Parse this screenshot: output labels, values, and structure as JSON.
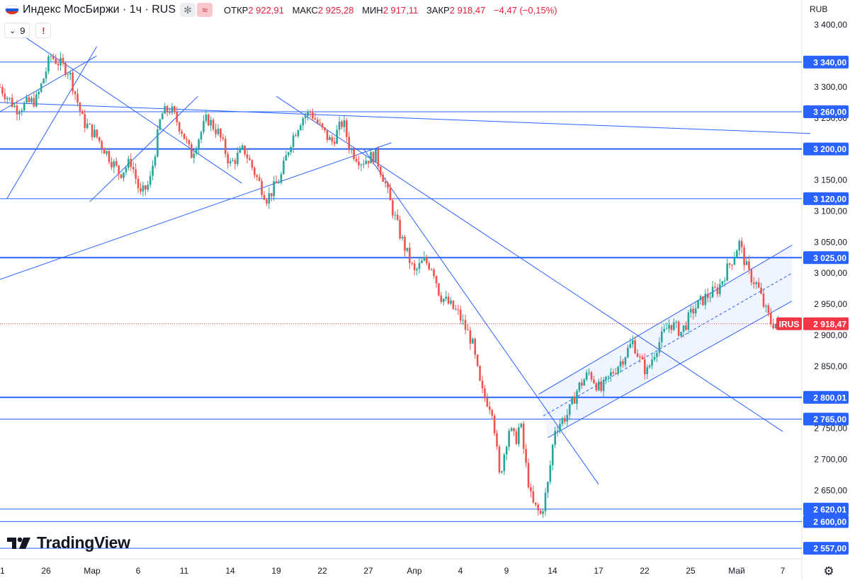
{
  "header": {
    "symbol": "Индекс МосБиржи · 1ч · RUS",
    "open_label": "ОТКР",
    "open_value": "2 922,91",
    "high_label": "МАКС",
    "high_value": "2 925,28",
    "low_label": "МИН",
    "low_value": "2 917,11",
    "close_label": "ЗАКР",
    "close_value": "2 918,47",
    "change": "−4,47 (−0,15%)",
    "indicator_count": "9",
    "warning_glyph": "!",
    "currency": "RUB"
  },
  "colors": {
    "up": "#26a69a",
    "down": "#ef5350",
    "line": "#2962ff",
    "label_bg": "#2962ff",
    "price_label_bg": "#f23645",
    "axis_text": "#131722"
  },
  "icons": [
    "flag-russia-icon",
    "snowflake-icon",
    "wave-icon",
    "chevron-down-icon",
    "warning-icon",
    "tradingview-logo-icon",
    "gear-icon"
  ],
  "chart_data": {
    "type": "candlestick",
    "title": "Индекс МосБиржи · 1ч · RUS",
    "y_ticks": [
      "3 400,00",
      "3 300,00",
      "3 250,00",
      "3 150,00",
      "3 100,00",
      "3 050,00",
      "3 000,00",
      "2 950,00",
      "2 900,00",
      "2 850,00",
      "2 750,00",
      "2 700,00",
      "2 650,00"
    ],
    "y_tick_values": [
      3400,
      3300,
      3250,
      3150,
      3100,
      3050,
      3000,
      2950,
      2900,
      2850,
      2750,
      2700,
      2650
    ],
    "ylim": [
      2540,
      3440
    ],
    "x_ticks": [
      "1",
      "26",
      "Мар",
      "6",
      "11",
      "14",
      "19",
      "22",
      "27",
      "Апр",
      "4",
      "9",
      "14",
      "17",
      "22",
      "25",
      "Май",
      "7"
    ],
    "level_labels": [
      "3 340,00",
      "3 260,00",
      "3 200,00",
      "3 120,00",
      "3 025,00",
      "2 800,01",
      "2 765,00",
      "2 620,01",
      "2 600,00",
      "2 557,00"
    ],
    "level_values": [
      3340,
      3260,
      3200,
      3120,
      3025,
      2800.01,
      2765,
      2620.01,
      2600,
      2557
    ],
    "current_price_symbol": "IRUS",
    "current_price_label": "2 918,47",
    "current_price": 2918.47,
    "price_path": [
      [
        0,
        3300
      ],
      [
        0.35,
        3265
      ],
      [
        0.8,
        3280
      ],
      [
        1.1,
        3350
      ],
      [
        1.5,
        3325
      ],
      [
        1.8,
        3245
      ],
      [
        2.1,
        3220
      ],
      [
        2.6,
        3160
      ],
      [
        2.85,
        3180
      ],
      [
        3.05,
        3125
      ],
      [
        3.25,
        3145
      ],
      [
        3.5,
        3255
      ],
      [
        3.7,
        3265
      ],
      [
        3.95,
        3230
      ],
      [
        4.15,
        3190
      ],
      [
        4.5,
        3250
      ],
      [
        4.75,
        3225
      ],
      [
        5.0,
        3175
      ],
      [
        5.3,
        3200
      ],
      [
        5.6,
        3150
      ],
      [
        5.8,
        3120
      ],
      [
        6.1,
        3155
      ],
      [
        6.3,
        3210
      ],
      [
        6.55,
        3250
      ],
      [
        6.75,
        3260
      ],
      [
        6.95,
        3235
      ],
      [
        7.2,
        3210
      ],
      [
        7.45,
        3245
      ],
      [
        7.6,
        3200
      ],
      [
        7.85,
        3180
      ],
      [
        8.15,
        3190
      ],
      [
        8.35,
        3150
      ],
      [
        8.45,
        3120
      ],
      [
        8.7,
        3060
      ],
      [
        9.0,
        3000
      ],
      [
        9.2,
        3020
      ],
      [
        9.4,
        3010
      ],
      [
        9.55,
        2965
      ],
      [
        9.75,
        2950
      ],
      [
        9.95,
        2935
      ],
      [
        10.25,
        2890
      ],
      [
        10.45,
        2810
      ],
      [
        10.7,
        2780
      ],
      [
        10.85,
        2670
      ],
      [
        11.05,
        2750
      ],
      [
        11.2,
        2730
      ],
      [
        11.3,
        2760
      ],
      [
        11.4,
        2700
      ],
      [
        11.55,
        2630
      ],
      [
        11.75,
        2610
      ],
      [
        11.9,
        2660
      ],
      [
        12.05,
        2750
      ],
      [
        12.35,
        2775
      ],
      [
        12.55,
        2815
      ],
      [
        12.8,
        2840
      ],
      [
        13.05,
        2810
      ],
      [
        13.25,
        2835
      ],
      [
        13.5,
        2860
      ],
      [
        13.75,
        2890
      ],
      [
        13.9,
        2860
      ],
      [
        14.05,
        2840
      ],
      [
        14.25,
        2880
      ],
      [
        14.55,
        2920
      ],
      [
        14.8,
        2905
      ],
      [
        15.05,
        2940
      ],
      [
        15.3,
        2960
      ],
      [
        15.6,
        2975
      ],
      [
        15.75,
        3000
      ],
      [
        15.95,
        3030
      ],
      [
        16.05,
        3050
      ],
      [
        16.25,
        3000
      ],
      [
        16.45,
        2980
      ],
      [
        16.6,
        2945
      ],
      [
        16.75,
        2920
      ],
      [
        16.9,
        2918
      ]
    ],
    "trend_lines": [
      {
        "from": [
          0.15,
          3120
        ],
        "to": [
          2.1,
          3365
        ]
      },
      {
        "from": [
          0.0,
          3260
        ],
        "to": [
          2.1,
          3350
        ]
      },
      {
        "from": [
          0.55,
          3380
        ],
        "to": [
          5.25,
          3145
        ]
      },
      {
        "from": [
          0.0,
          3275
        ],
        "to": [
          17.6,
          3225
        ]
      },
      {
        "from": [
          1.95,
          3115
        ],
        "to": [
          4.3,
          3285
        ]
      },
      {
        "from": [
          0.0,
          2990
        ],
        "to": [
          8.5,
          3210
        ]
      },
      {
        "from": [
          6.0,
          3285
        ],
        "to": [
          17.0,
          2745
        ]
      },
      {
        "from": [
          7.9,
          3200
        ],
        "to": [
          13.0,
          2660
        ]
      },
      {
        "from": [
          11.7,
          2805
        ],
        "to": [
          17.2,
          3045
        ]
      },
      {
        "from": [
          11.9,
          2735
        ],
        "to": [
          17.2,
          2955
        ]
      }
    ],
    "channel_mid": {
      "from": [
        11.8,
        2770
      ],
      "to": [
        17.2,
        3000
      ]
    },
    "grid": false
  }
}
